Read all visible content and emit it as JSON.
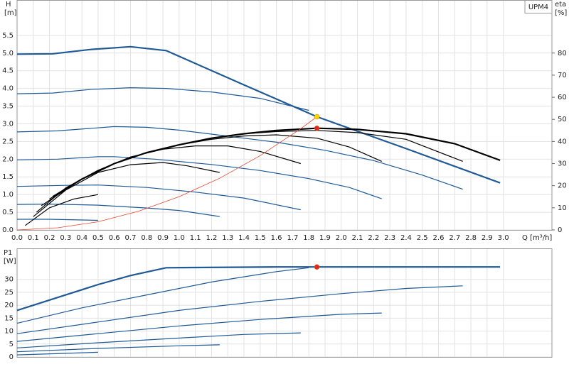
{
  "chart_data": [
    {
      "type": "line",
      "title": "UPM4",
      "xlabel": "Q [m³/h]",
      "ylabel": "H",
      "yunit": "[m]",
      "y2label": "eta",
      "y2unit": "[%]",
      "xlim": [
        0,
        3.3
      ],
      "ylim": [
        0,
        6.5
      ],
      "y2lim": [
        0,
        104
      ],
      "grid": true,
      "xticks": [
        {
          "value": 0,
          "label": "0.0"
        },
        0.1,
        0.2,
        0.3,
        0.4,
        0.5,
        0.6,
        0.7,
        0.8,
        0.9,
        {
          "value": 1,
          "label": "1.0"
        },
        1.1,
        1.2,
        1.3,
        1.4,
        1.5,
        1.6,
        1.7,
        1.8,
        1.9,
        {
          "value": 2,
          "label": "2.0"
        },
        2.1,
        2.2,
        2.3,
        2.4,
        2.5,
        2.6,
        2.7,
        2.8,
        2.9,
        {
          "value": 3,
          "label": "3.0"
        }
      ],
      "yticks": [
        {
          "value": 0,
          "label": "0.0"
        },
        0.5,
        {
          "value": 1,
          "label": "1.0"
        },
        1.5,
        {
          "value": 2,
          "label": "2.0"
        },
        2.5,
        {
          "value": 3,
          "label": "3.0"
        },
        3.5,
        {
          "value": 4,
          "label": "4.0"
        },
        4.5,
        {
          "value": 5,
          "label": "5.0"
        },
        5.5
      ],
      "y2ticks": [
        0,
        10,
        20,
        30,
        40,
        50,
        60,
        70,
        80
      ],
      "series": [
        {
          "color": "#1f5a96",
          "line_width": 2.2,
          "x": [
            0,
            0.22,
            0.45,
            0.7,
            0.92,
            1.4,
            1.85,
            2.4,
            2.98
          ],
          "values": [
            4.97,
            4.98,
            5.1,
            5.18,
            5.07,
            4.1,
            3.2,
            2.3,
            1.33
          ]
        },
        {
          "color": "#1f5a96",
          "line_width": 1.2,
          "x": [
            0,
            0.22,
            0.45,
            0.7,
            0.92,
            1.2,
            1.5,
            1.8
          ],
          "values": [
            3.85,
            3.87,
            3.97,
            4.02,
            4.0,
            3.9,
            3.72,
            3.38
          ]
        },
        {
          "color": "#1f5a96",
          "line_width": 1.2,
          "x": [
            0,
            0.25,
            0.6,
            0.8,
            1.0,
            1.3,
            1.6,
            1.9,
            2.2,
            2.5,
            2.75
          ],
          "values": [
            2.77,
            2.8,
            2.92,
            2.9,
            2.82,
            2.65,
            2.48,
            2.25,
            1.96,
            1.55,
            1.15
          ]
        },
        {
          "color": "#1f5a96",
          "line_width": 1.2,
          "x": [
            0,
            0.25,
            0.5,
            0.6,
            0.85,
            1.2,
            1.5,
            1.8,
            2.05,
            2.25
          ],
          "values": [
            1.98,
            2.0,
            2.07,
            2.07,
            2.0,
            1.85,
            1.68,
            1.45,
            1.2,
            0.88
          ]
        },
        {
          "color": "#1f5a96",
          "line_width": 1.2,
          "x": [
            0,
            0.3,
            0.5,
            0.8,
            1.1,
            1.4,
            1.75
          ],
          "values": [
            1.23,
            1.26,
            1.27,
            1.2,
            1.07,
            0.9,
            0.57
          ]
        },
        {
          "color": "#1f5a96",
          "line_width": 1.2,
          "x": [
            0,
            0.2,
            0.5,
            0.8,
            1.0,
            1.25
          ],
          "values": [
            0.72,
            0.73,
            0.7,
            0.62,
            0.55,
            0.38
          ]
        },
        {
          "color": "#1f5a96",
          "line_width": 1.2,
          "x": [
            0,
            0.2,
            0.5
          ],
          "values": [
            0.3,
            0.3,
            0.27
          ]
        },
        {
          "color": "#000000",
          "line_width": 2.2,
          "axis": "y2",
          "x": [
            0.22,
            0.4,
            0.6,
            0.8,
            1.0,
            1.2,
            1.4,
            1.6,
            1.85,
            2.1,
            2.4,
            2.7,
            2.98
          ],
          "values": [
            15,
            23,
            30,
            35,
            38.5,
            41.5,
            43.5,
            45,
            46,
            45.5,
            43.5,
            39,
            31.5
          ]
        },
        {
          "color": "#000000",
          "line_width": 1.2,
          "axis": "y2",
          "x": [
            0.2,
            0.4,
            0.6,
            0.8,
            1.0,
            1.2,
            1.4,
            1.6,
            1.85,
            2.1,
            2.4,
            2.75
          ],
          "values": [
            14,
            23,
            30,
            35,
            38.5,
            41.5,
            43.5,
            44.5,
            45,
            44,
            41,
            31
          ]
        },
        {
          "color": "#000000",
          "line_width": 1.2,
          "axis": "y2",
          "x": [
            0.15,
            0.4,
            0.6,
            0.8,
            1.0,
            1.2,
            1.4,
            1.6,
            1.85,
            2.05,
            2.25
          ],
          "values": [
            11,
            23,
            30,
            35,
            38.5,
            41,
            42.5,
            43,
            41.5,
            37.5,
            31
          ]
        },
        {
          "color": "#000000",
          "line_width": 1.2,
          "axis": "y2",
          "x": [
            0.12,
            0.3,
            0.5,
            0.7,
            0.9,
            1.1,
            1.3,
            1.5,
            1.75
          ],
          "values": [
            8,
            19,
            27,
            33,
            36.5,
            38,
            38,
            35.5,
            30
          ]
        },
        {
          "color": "#000000",
          "line_width": 1.2,
          "axis": "y2",
          "x": [
            0.1,
            0.3,
            0.5,
            0.7,
            0.9,
            1.05,
            1.25
          ],
          "values": [
            6,
            18,
            26,
            29.5,
            30.5,
            29,
            26
          ]
        },
        {
          "color": "#000000",
          "line_width": 1.2,
          "axis": "y2",
          "x": [
            0.05,
            0.2,
            0.35,
            0.5
          ],
          "values": [
            2,
            10,
            14,
            16
          ]
        },
        {
          "color": "#e8442f",
          "line_width": 0.8,
          "x": [
            0,
            0.25,
            0.5,
            0.75,
            1.0,
            1.25,
            1.5,
            1.75,
            1.85
          ],
          "values": [
            0,
            0.06,
            0.23,
            0.53,
            0.94,
            1.46,
            2.1,
            2.86,
            3.2
          ]
        },
        {
          "color": "#ffd200",
          "style": "point",
          "x": [
            1.85
          ],
          "values": [
            3.2
          ]
        },
        {
          "color": "#e8222a",
          "style": "point",
          "axis": "y2",
          "x": [
            1.85
          ],
          "values": [
            46
          ]
        }
      ]
    },
    {
      "type": "line",
      "ylabel": "P1",
      "yunit": "[W]",
      "xlim": [
        0,
        3.3
      ],
      "ylim": [
        0,
        42
      ],
      "grid": true,
      "yticks": [
        0,
        5,
        10,
        15,
        20,
        25,
        30
      ],
      "series": [
        {
          "color": "#1f5a96",
          "line_width": 2.2,
          "x": [
            0,
            0.25,
            0.5,
            0.7,
            0.92,
            1.6,
            1.85,
            2.98
          ],
          "values": [
            18,
            23,
            28,
            31.5,
            34.5,
            34.8,
            34.8,
            34.8
          ]
        },
        {
          "color": "#1f5a96",
          "line_width": 1.2,
          "x": [
            0,
            0.4,
            0.8,
            1.2,
            1.6,
            1.8
          ],
          "values": [
            13,
            19,
            24,
            29,
            33,
            34.5
          ]
        },
        {
          "color": "#1f5a96",
          "line_width": 1.2,
          "x": [
            0,
            0.5,
            1.0,
            1.5,
            2.0,
            2.4,
            2.75
          ],
          "values": [
            9,
            13.5,
            18,
            21.5,
            24.5,
            26.5,
            27.5
          ]
        },
        {
          "color": "#1f5a96",
          "line_width": 1.2,
          "x": [
            0,
            0.5,
            1.0,
            1.5,
            2.0,
            2.25
          ],
          "values": [
            6,
            9,
            12,
            14.5,
            16.5,
            17
          ]
        },
        {
          "color": "#1f5a96",
          "line_width": 1.2,
          "x": [
            0,
            0.5,
            1.0,
            1.4,
            1.75
          ],
          "values": [
            3.5,
            5.5,
            7.3,
            8.7,
            9.3
          ]
        },
        {
          "color": "#1f5a96",
          "line_width": 1.2,
          "x": [
            0,
            0.5,
            1.0,
            1.25
          ],
          "values": [
            2,
            3.3,
            4.3,
            4.7
          ]
        },
        {
          "color": "#1f5a96",
          "line_width": 1.2,
          "x": [
            0,
            0.5
          ],
          "values": [
            0.8,
            1.8
          ]
        },
        {
          "color": "#e8222a",
          "style": "point",
          "x": [
            1.85
          ],
          "values": [
            34.8
          ]
        }
      ]
    }
  ]
}
